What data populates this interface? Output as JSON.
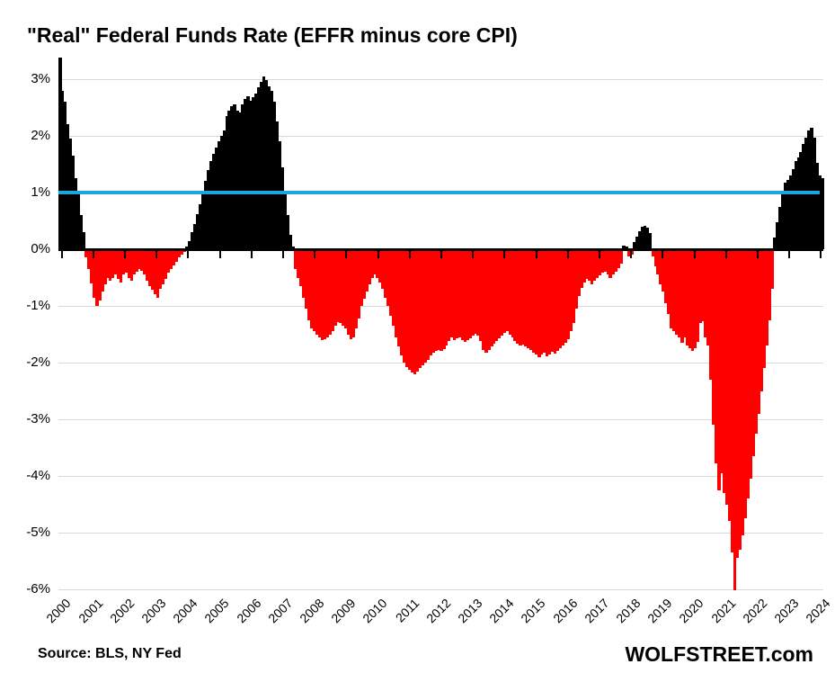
{
  "title": "\"Real\" Federal Funds Rate (EFFR minus core CPI)",
  "source_note": "Source: BLS, NY Fed",
  "branding": "WOLFSTREET.com",
  "chart_data": {
    "type": "bar",
    "title": "\"Real\" Federal Funds Rate (EFFR minus core CPI)",
    "xlabel": "",
    "ylabel": "",
    "unit": "percent",
    "frequency": "monthly",
    "start": "2000-01",
    "end": "2024-01",
    "x_tick_labels": [
      "2000",
      "2001",
      "2002",
      "2003",
      "2004",
      "2005",
      "2006",
      "2007",
      "2008",
      "2009",
      "2010",
      "2011",
      "2012",
      "2013",
      "2014",
      "2015",
      "2016",
      "2017",
      "2018",
      "2019",
      "2020",
      "2021",
      "2022",
      "2023",
      "2024"
    ],
    "y_ticks": [
      3,
      2,
      1,
      0,
      -1,
      -2,
      -3,
      -4,
      -5,
      -6
    ],
    "y_tick_labels": [
      "3%",
      "2%",
      "1%",
      "0%",
      "-1%",
      "-2%",
      "-3%",
      "-4%",
      "-5%",
      "-6%"
    ],
    "ylim": [
      -6.15,
      3.38
    ],
    "grid": "horizontal-only",
    "legend": null,
    "reference_line": {
      "value": 1,
      "color": "#1aa7e0",
      "meaning": "1% level highlighted"
    },
    "colors": {
      "positive": "#000000",
      "negative": "#ff0000",
      "reference": "#1aa7e0",
      "grid": "#d9d9d9",
      "axis": "#000000"
    },
    "values": [
      3.45,
      2.8,
      2.6,
      2.2,
      1.95,
      1.65,
      1.25,
      1.0,
      0.6,
      0.3,
      -0.15,
      -0.35,
      -0.6,
      -0.85,
      -1.0,
      -0.9,
      -0.75,
      -0.62,
      -0.5,
      -0.55,
      -0.5,
      -0.45,
      -0.52,
      -0.58,
      -0.45,
      -0.42,
      -0.5,
      -0.55,
      -0.45,
      -0.4,
      -0.35,
      -0.38,
      -0.45,
      -0.55,
      -0.65,
      -0.72,
      -0.8,
      -0.85,
      -0.7,
      -0.62,
      -0.52,
      -0.42,
      -0.35,
      -0.28,
      -0.22,
      -0.15,
      -0.1,
      -0.05,
      0.05,
      0.15,
      0.3,
      0.45,
      0.62,
      0.8,
      1.0,
      1.2,
      1.4,
      1.55,
      1.68,
      1.8,
      1.9,
      2.0,
      2.1,
      2.35,
      2.45,
      2.52,
      2.55,
      2.45,
      2.42,
      2.55,
      2.65,
      2.7,
      2.62,
      2.68,
      2.75,
      2.85,
      2.95,
      3.05,
      2.98,
      2.88,
      2.8,
      2.6,
      2.25,
      1.9,
      1.45,
      1.0,
      0.6,
      0.25,
      0.05,
      -0.35,
      -0.5,
      -0.65,
      -0.85,
      -1.05,
      -1.25,
      -1.4,
      -1.45,
      -1.5,
      -1.56,
      -1.6,
      -1.58,
      -1.55,
      -1.5,
      -1.44,
      -1.35,
      -1.28,
      -1.3,
      -1.35,
      -1.4,
      -1.5,
      -1.58,
      -1.55,
      -1.4,
      -1.22,
      -1.0,
      -0.88,
      -0.74,
      -0.62,
      -0.5,
      -0.44,
      -0.5,
      -0.58,
      -0.7,
      -0.85,
      -1.0,
      -1.18,
      -1.35,
      -1.55,
      -1.72,
      -1.88,
      -2.0,
      -2.08,
      -2.12,
      -2.18,
      -2.2,
      -2.16,
      -2.1,
      -2.05,
      -2.0,
      -1.95,
      -1.88,
      -1.83,
      -1.79,
      -1.77,
      -1.79,
      -1.76,
      -1.7,
      -1.62,
      -1.56,
      -1.6,
      -1.57,
      -1.55,
      -1.6,
      -1.63,
      -1.6,
      -1.57,
      -1.53,
      -1.49,
      -1.53,
      -1.62,
      -1.77,
      -1.82,
      -1.78,
      -1.72,
      -1.67,
      -1.62,
      -1.57,
      -1.52,
      -1.47,
      -1.45,
      -1.5,
      -1.56,
      -1.62,
      -1.66,
      -1.7,
      -1.68,
      -1.71,
      -1.74,
      -1.78,
      -1.83,
      -1.86,
      -1.9,
      -1.86,
      -1.83,
      -1.89,
      -1.86,
      -1.81,
      -1.84,
      -1.8,
      -1.75,
      -1.7,
      -1.65,
      -1.58,
      -1.45,
      -1.3,
      -1.05,
      -0.82,
      -0.68,
      -0.58,
      -0.53,
      -0.56,
      -0.62,
      -0.55,
      -0.5,
      -0.46,
      -0.42,
      -0.39,
      -0.44,
      -0.5,
      -0.45,
      -0.4,
      -0.34,
      -0.25,
      0.07,
      0.05,
      -0.12,
      -0.1,
      0.12,
      0.22,
      0.32,
      0.4,
      0.42,
      0.38,
      0.28,
      -0.12,
      -0.3,
      -0.45,
      -0.62,
      -0.75,
      -0.95,
      -1.15,
      -1.4,
      -1.45,
      -1.5,
      -1.55,
      -1.65,
      -1.55,
      -1.7,
      -1.75,
      -1.8,
      -1.75,
      -1.63,
      -1.3,
      -1.27,
      -1.55,
      -1.7,
      -2.3,
      -3.1,
      -3.78,
      -4.25,
      -3.95,
      -4.3,
      -4.5,
      -4.8,
      -5.35,
      -6.02,
      -5.45,
      -5.3,
      -5.05,
      -4.75,
      -4.4,
      -4.05,
      -3.65,
      -3.25,
      -2.9,
      -2.5,
      -2.1,
      -1.7,
      -1.25,
      -0.7,
      0.2,
      0.48,
      0.75,
      1.0,
      1.17,
      1.22,
      1.3,
      1.42,
      1.55,
      1.62,
      1.72,
      1.85,
      1.97,
      2.1,
      2.15,
      1.97,
      1.52,
      1.3,
      1.25
    ]
  }
}
